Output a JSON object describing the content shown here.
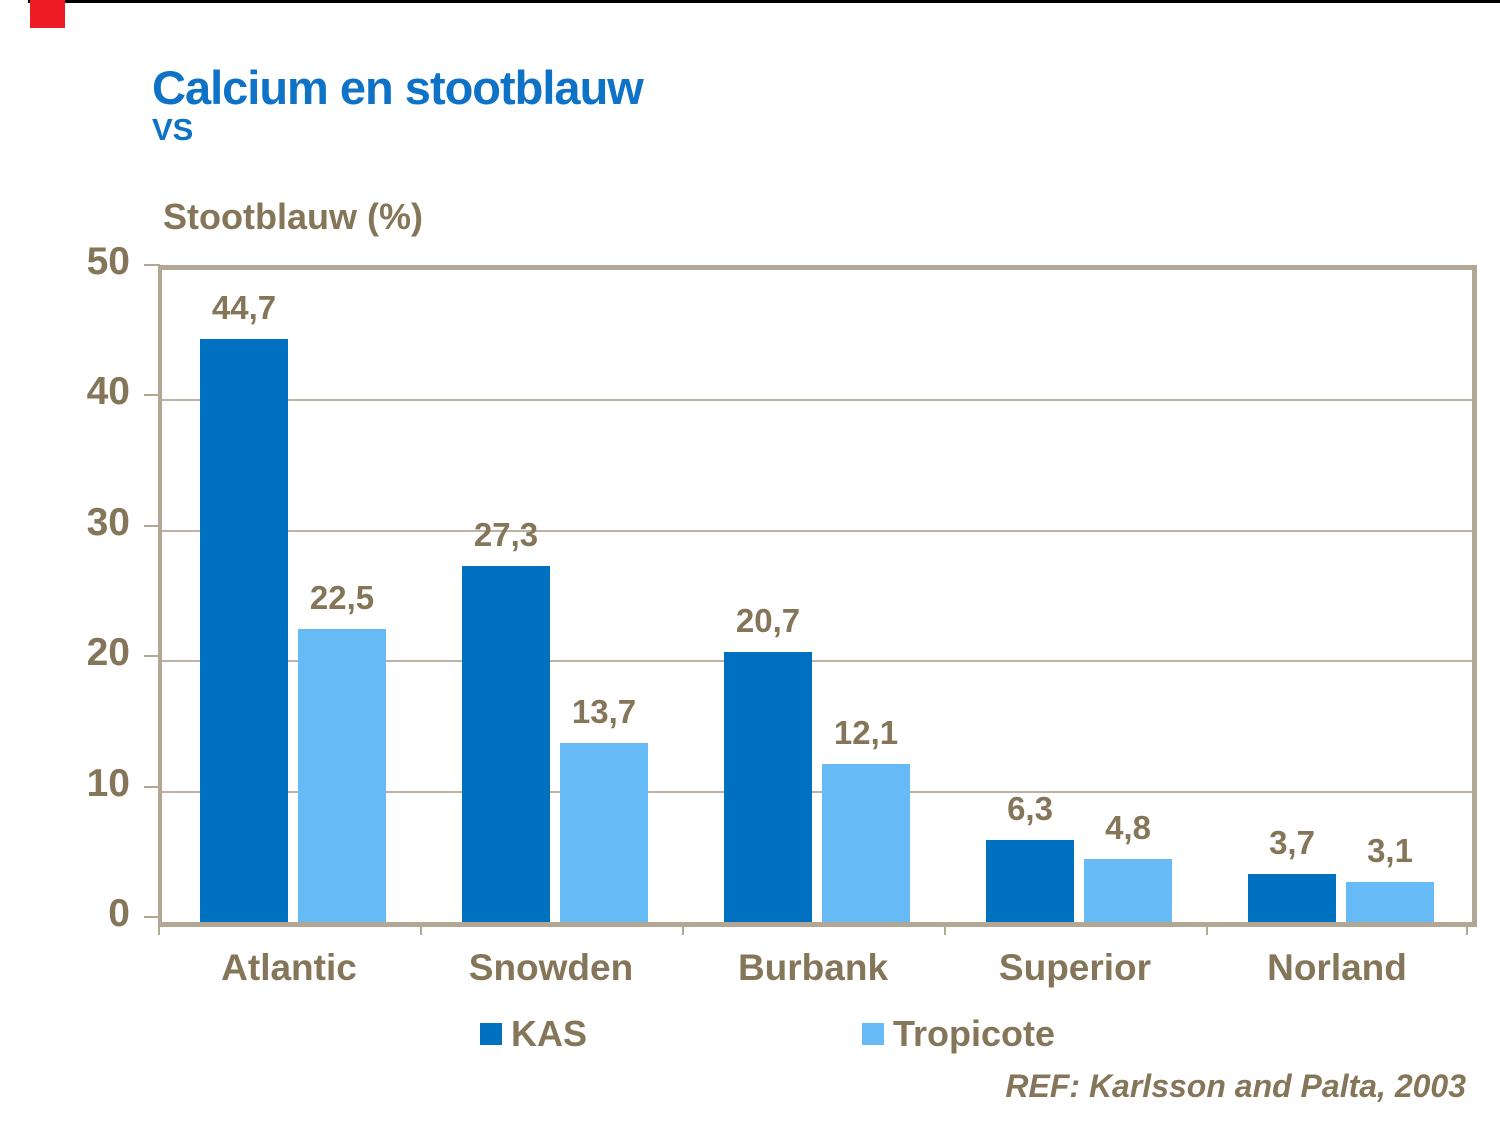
{
  "header": {
    "title": "Calcium en stootblauw",
    "subtitle": "VS"
  },
  "decor": {
    "top_rule_color": "#000000",
    "red_block_color": "#ed1c24"
  },
  "chart_data": {
    "type": "bar",
    "axis_title": "Stootblauw (%)",
    "categories": [
      "Atlantic",
      "Snowden",
      "Burbank",
      "Superior",
      "Norland"
    ],
    "series": [
      {
        "name": "KAS",
        "color": "#0070c0",
        "values": [
          44.7,
          27.3,
          20.7,
          6.3,
          3.7
        ],
        "labels": [
          "44,7",
          "27,3",
          "20,7",
          "6,3",
          "3,7"
        ]
      },
      {
        "name": "Tropicote",
        "color": "#66bbf7",
        "values": [
          22.5,
          13.7,
          12.1,
          4.8,
          3.1
        ],
        "labels": [
          "22,5",
          "13,7",
          "12,1",
          "4,8",
          "3,1"
        ]
      }
    ],
    "ylim": [
      0,
      50
    ],
    "yticks": [
      0,
      10,
      20,
      30,
      40,
      50
    ],
    "grid": "horizontal",
    "legend_position": "bottom",
    "text_color": "#857659",
    "axis_color": "#b2a795",
    "gridline_color": "#bdb3a4"
  },
  "legend": {
    "items": [
      {
        "label": "KAS",
        "color": "#0070c0"
      },
      {
        "label": "Tropicote",
        "color": "#66bbf7"
      }
    ]
  },
  "footer": {
    "reference": "REF: Karlsson and Palta, 2003"
  }
}
